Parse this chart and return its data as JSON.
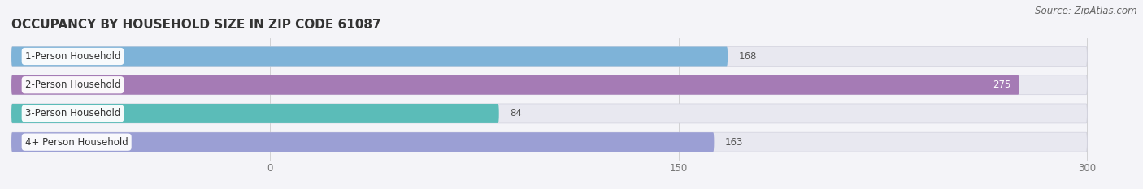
{
  "title": "OCCUPANCY BY HOUSEHOLD SIZE IN ZIP CODE 61087",
  "source": "Source: ZipAtlas.com",
  "categories": [
    "1-Person Household",
    "2-Person Household",
    "3-Person Household",
    "4+ Person Household"
  ],
  "values": [
    168,
    275,
    84,
    163
  ],
  "bar_colors": [
    "#7eb3d8",
    "#a57bb5",
    "#5bbcb8",
    "#9b9fd4"
  ],
  "bar_bg_color": "#e8e8f0",
  "xlim_min": -95,
  "xlim_max": 310,
  "axis_min": 0,
  "axis_max": 300,
  "xticks": [
    0,
    150,
    300
  ],
  "figsize": [
    14.06,
    2.33
  ],
  "dpi": 100,
  "title_fontsize": 11,
  "label_fontsize": 8.5,
  "value_fontsize": 8.5,
  "source_fontsize": 8.5,
  "bar_height": 0.68,
  "fig_bg_color": "#f4f4f8",
  "bar_gap": 0.18
}
